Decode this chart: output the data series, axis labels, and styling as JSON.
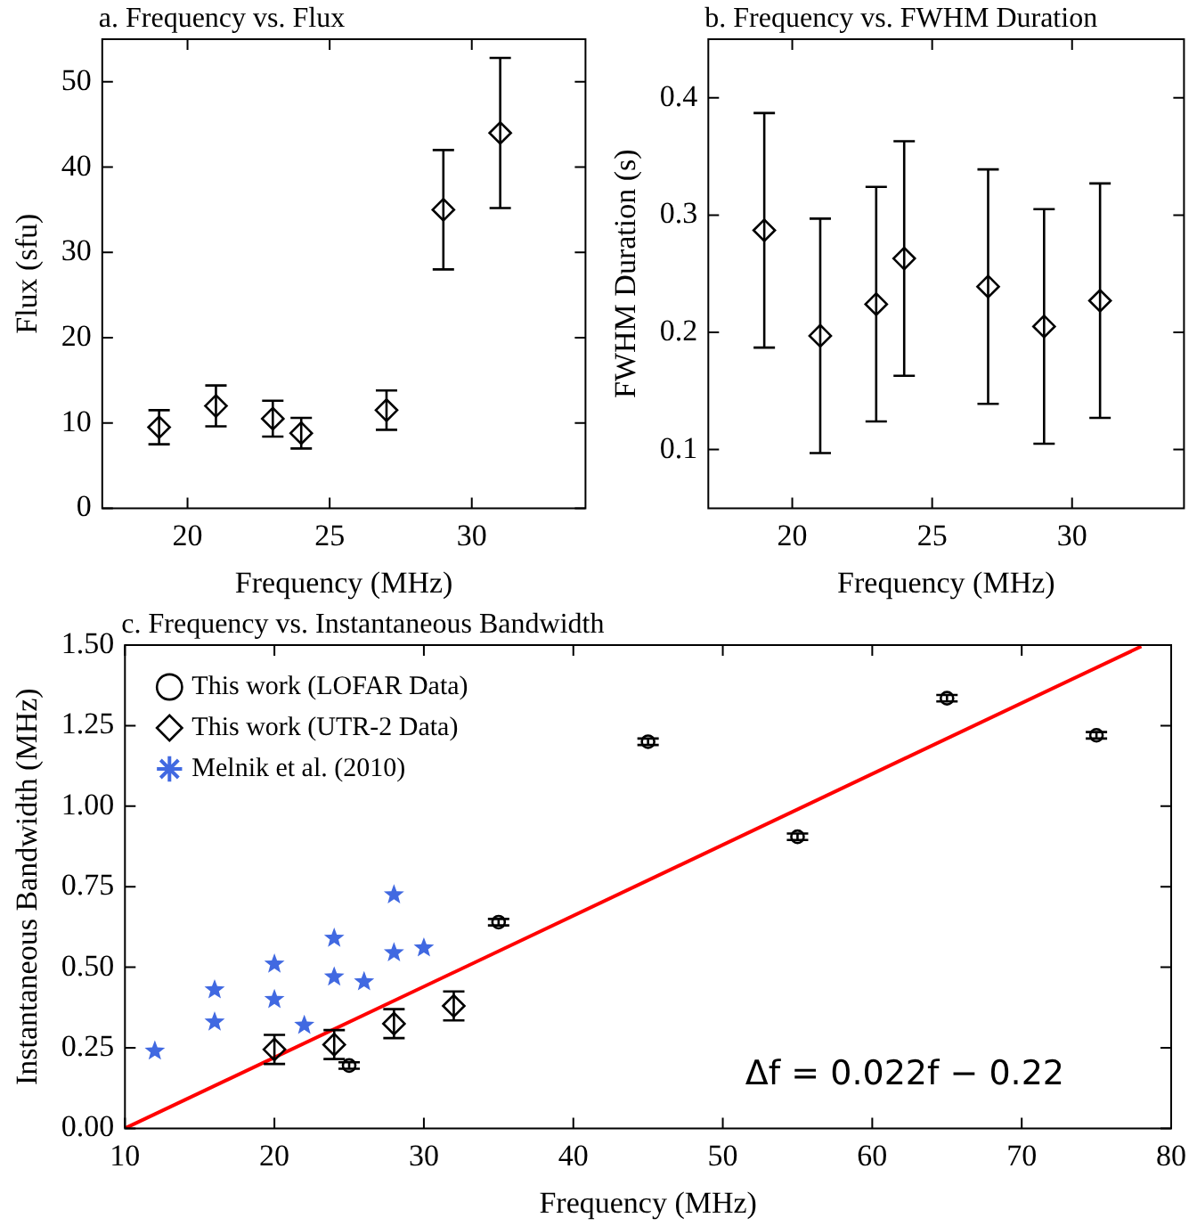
{
  "chart_data": [
    {
      "type": "scatter",
      "title": "a. Frequency vs. Flux",
      "xlabel": "Frequency (MHz)",
      "ylabel": "Flux (sfu)",
      "xlim": [
        17,
        34
      ],
      "xticks": [
        20,
        25,
        30
      ],
      "ylim": [
        0,
        55
      ],
      "yticks": [
        0,
        10,
        20,
        30,
        40,
        50
      ],
      "grid": false,
      "legend": false,
      "series": [
        {
          "marker": "diamond",
          "color": "#000000",
          "x": [
            19,
            21,
            23,
            24,
            27,
            29,
            31
          ],
          "values": [
            9.5,
            12,
            10.5,
            8.8,
            11.5,
            35,
            44
          ],
          "errors": [
            2,
            2.4,
            2.1,
            1.8,
            2.3,
            7,
            8.8
          ]
        }
      ]
    },
    {
      "type": "scatter",
      "title": "b. Frequency vs. FWHM Duration",
      "xlabel": "Frequency (MHz)",
      "ylabel": "FWHM Duration (s)",
      "xlim": [
        17,
        34
      ],
      "xticks": [
        20,
        25,
        30
      ],
      "ylim": [
        0.05,
        0.45
      ],
      "yticks": [
        0.1,
        0.2,
        0.3,
        0.4
      ],
      "grid": false,
      "legend": false,
      "series": [
        {
          "marker": "diamond",
          "color": "#000000",
          "x": [
            19,
            21,
            23,
            24,
            27,
            29,
            31
          ],
          "values": [
            0.287,
            0.197,
            0.224,
            0.263,
            0.239,
            0.205,
            0.227
          ],
          "errors": [
            0.1,
            0.1,
            0.1,
            0.1,
            0.1,
            0.1,
            0.1
          ]
        }
      ]
    },
    {
      "type": "scatter",
      "title": "c. Frequency vs. Instantaneous Bandwidth",
      "xlabel": "Frequency (MHz)",
      "ylabel": "Instantaneous Bandwidth (MHz)",
      "xlim": [
        10,
        80
      ],
      "xticks": [
        10,
        20,
        30,
        40,
        50,
        60,
        70,
        80
      ],
      "ylim": [
        0,
        1.5
      ],
      "yticks": [
        {
          "value": 0,
          "label": "0.00"
        },
        {
          "value": 0.25,
          "label": "0.25"
        },
        {
          "value": 0.5,
          "label": "0.50"
        },
        {
          "value": 0.75,
          "label": "0.75"
        },
        {
          "value": 1,
          "label": "1.00"
        },
        {
          "value": 1.25,
          "label": "1.25"
        },
        {
          "value": 1.5,
          "label": "1.50"
        }
      ],
      "grid": false,
      "legend": "top left",
      "annotations": [
        "Δf = 0.022f − 0.22"
      ],
      "series": [
        {
          "name": "This work (LOFAR Data)",
          "marker": "circle",
          "color": "#000000",
          "x": [
            25,
            35,
            45,
            55,
            65,
            75
          ],
          "values": [
            0.195,
            0.64,
            1.2,
            0.905,
            1.335,
            1.22
          ],
          "errors": [
            0.01,
            0.01,
            0.01,
            0.01,
            0.01,
            0.01
          ]
        },
        {
          "name": "This work (UTR-2 Data)",
          "marker": "diamond",
          "color": "#000000",
          "x": [
            20,
            24,
            28,
            32
          ],
          "values": [
            0.245,
            0.26,
            0.325,
            0.38
          ],
          "errors": [
            0.045,
            0.045,
            0.045,
            0.045
          ]
        },
        {
          "name": "Melnik et al. (2010)",
          "marker": "star",
          "color": "#4169e1",
          "x": [
            12,
            16,
            16,
            20,
            20,
            22,
            24,
            24,
            26,
            28,
            28,
            30
          ],
          "values": [
            0.24,
            0.43,
            0.33,
            0.51,
            0.4,
            0.32,
            0.59,
            0.47,
            0.455,
            0.725,
            0.545,
            0.56
          ]
        },
        {
          "type": "line",
          "color": "#ff0000",
          "x": [
            10,
            78
          ],
          "values": [
            0,
            1.496
          ]
        }
      ]
    }
  ]
}
